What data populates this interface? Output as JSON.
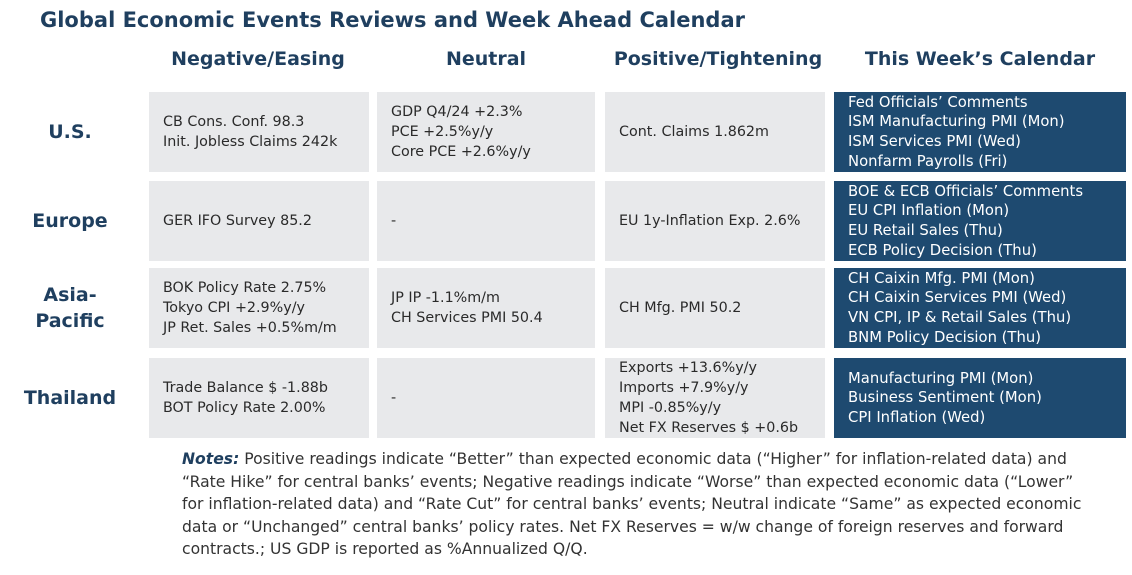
{
  "title": "Global Economic Events Reviews and Week Ahead Calendar",
  "columns": [
    "Negative/Easing",
    "Neutral",
    "Positive/Tightening",
    "This Week’s Calendar"
  ],
  "rows": [
    {
      "region_lines": [
        "U.S."
      ],
      "negative": [
        "CB Cons. Conf. 98.3",
        "Init. Jobless Claims 242k"
      ],
      "neutral": [
        "GDP Q4/24 +2.3%",
        "PCE +2.5%y/y",
        "Core PCE +2.6%y/y"
      ],
      "positive": [
        "Cont. Claims 1.862m"
      ],
      "calendar": [
        "Fed Officials’ Comments",
        "ISM Manufacturing PMI (Mon)",
        "ISM Services PMI (Wed)",
        "Nonfarm Payrolls (Fri)"
      ]
    },
    {
      "region_lines": [
        "Europe"
      ],
      "negative": [
        "GER IFO Survey 85.2"
      ],
      "neutral": [
        "-"
      ],
      "positive": [
        "EU 1y-Inflation Exp. 2.6%"
      ],
      "calendar": [
        "BOE & ECB Officials’ Comments",
        "EU CPI Inflation (Mon)",
        "EU Retail Sales (Thu)",
        "ECB Policy Decision (Thu)"
      ]
    },
    {
      "region_lines": [
        "Asia-",
        "Pacific"
      ],
      "negative": [
        "BOK Policy Rate 2.75%",
        "Tokyo CPI +2.9%y/y",
        "JP Ret. Sales +0.5%m/m"
      ],
      "neutral": [
        "JP IP -1.1%m/m",
        "CH Services PMI 50.4"
      ],
      "positive": [
        "CH Mfg. PMI 50.2"
      ],
      "calendar": [
        "CH Caixin Mfg. PMI (Mon)",
        "CH Caixin Services PMI (Wed)",
        "VN CPI, IP & Retail Sales (Thu)",
        "BNM Policy Decision (Thu)"
      ]
    },
    {
      "region_lines": [
        "Thailand"
      ],
      "negative": [
        "Trade Balance $ -1.88b",
        "BOT Policy Rate 2.00%"
      ],
      "neutral": [
        "-"
      ],
      "positive": [
        "Exports +13.6%y/y",
        "Imports +7.9%y/y",
        "MPI -0.85%y/y",
        "Net FX Reserves $ +0.6b"
      ],
      "calendar": [
        "Manufacturing PMI (Mon)",
        "Business Sentiment (Mon)",
        "CPI Inflation (Wed)"
      ]
    }
  ],
  "notes": {
    "label": "Notes:",
    "text": " Positive readings indicate “Better” than expected economic data (“Higher” for inflation-related data) and “Rate Hike” for central banks’ events; Negative readings indicate “Worse” than expected economic data (“Lower” for inflation-related data) and “Rate Cut” for central banks’ events; Neutral indicate “Same” as expected economic data or “Unchanged” central banks’ policy rates. Net FX Reserves = w/w change of foreign reserves and forward contracts.; US GDP is reported as %Annualized Q/Q."
  },
  "colors": {
    "heading": "#1f3f5f",
    "cell_background": "#e8e9eb",
    "calendar_background": "#1e4a70",
    "calendar_text": "#ffffff"
  }
}
